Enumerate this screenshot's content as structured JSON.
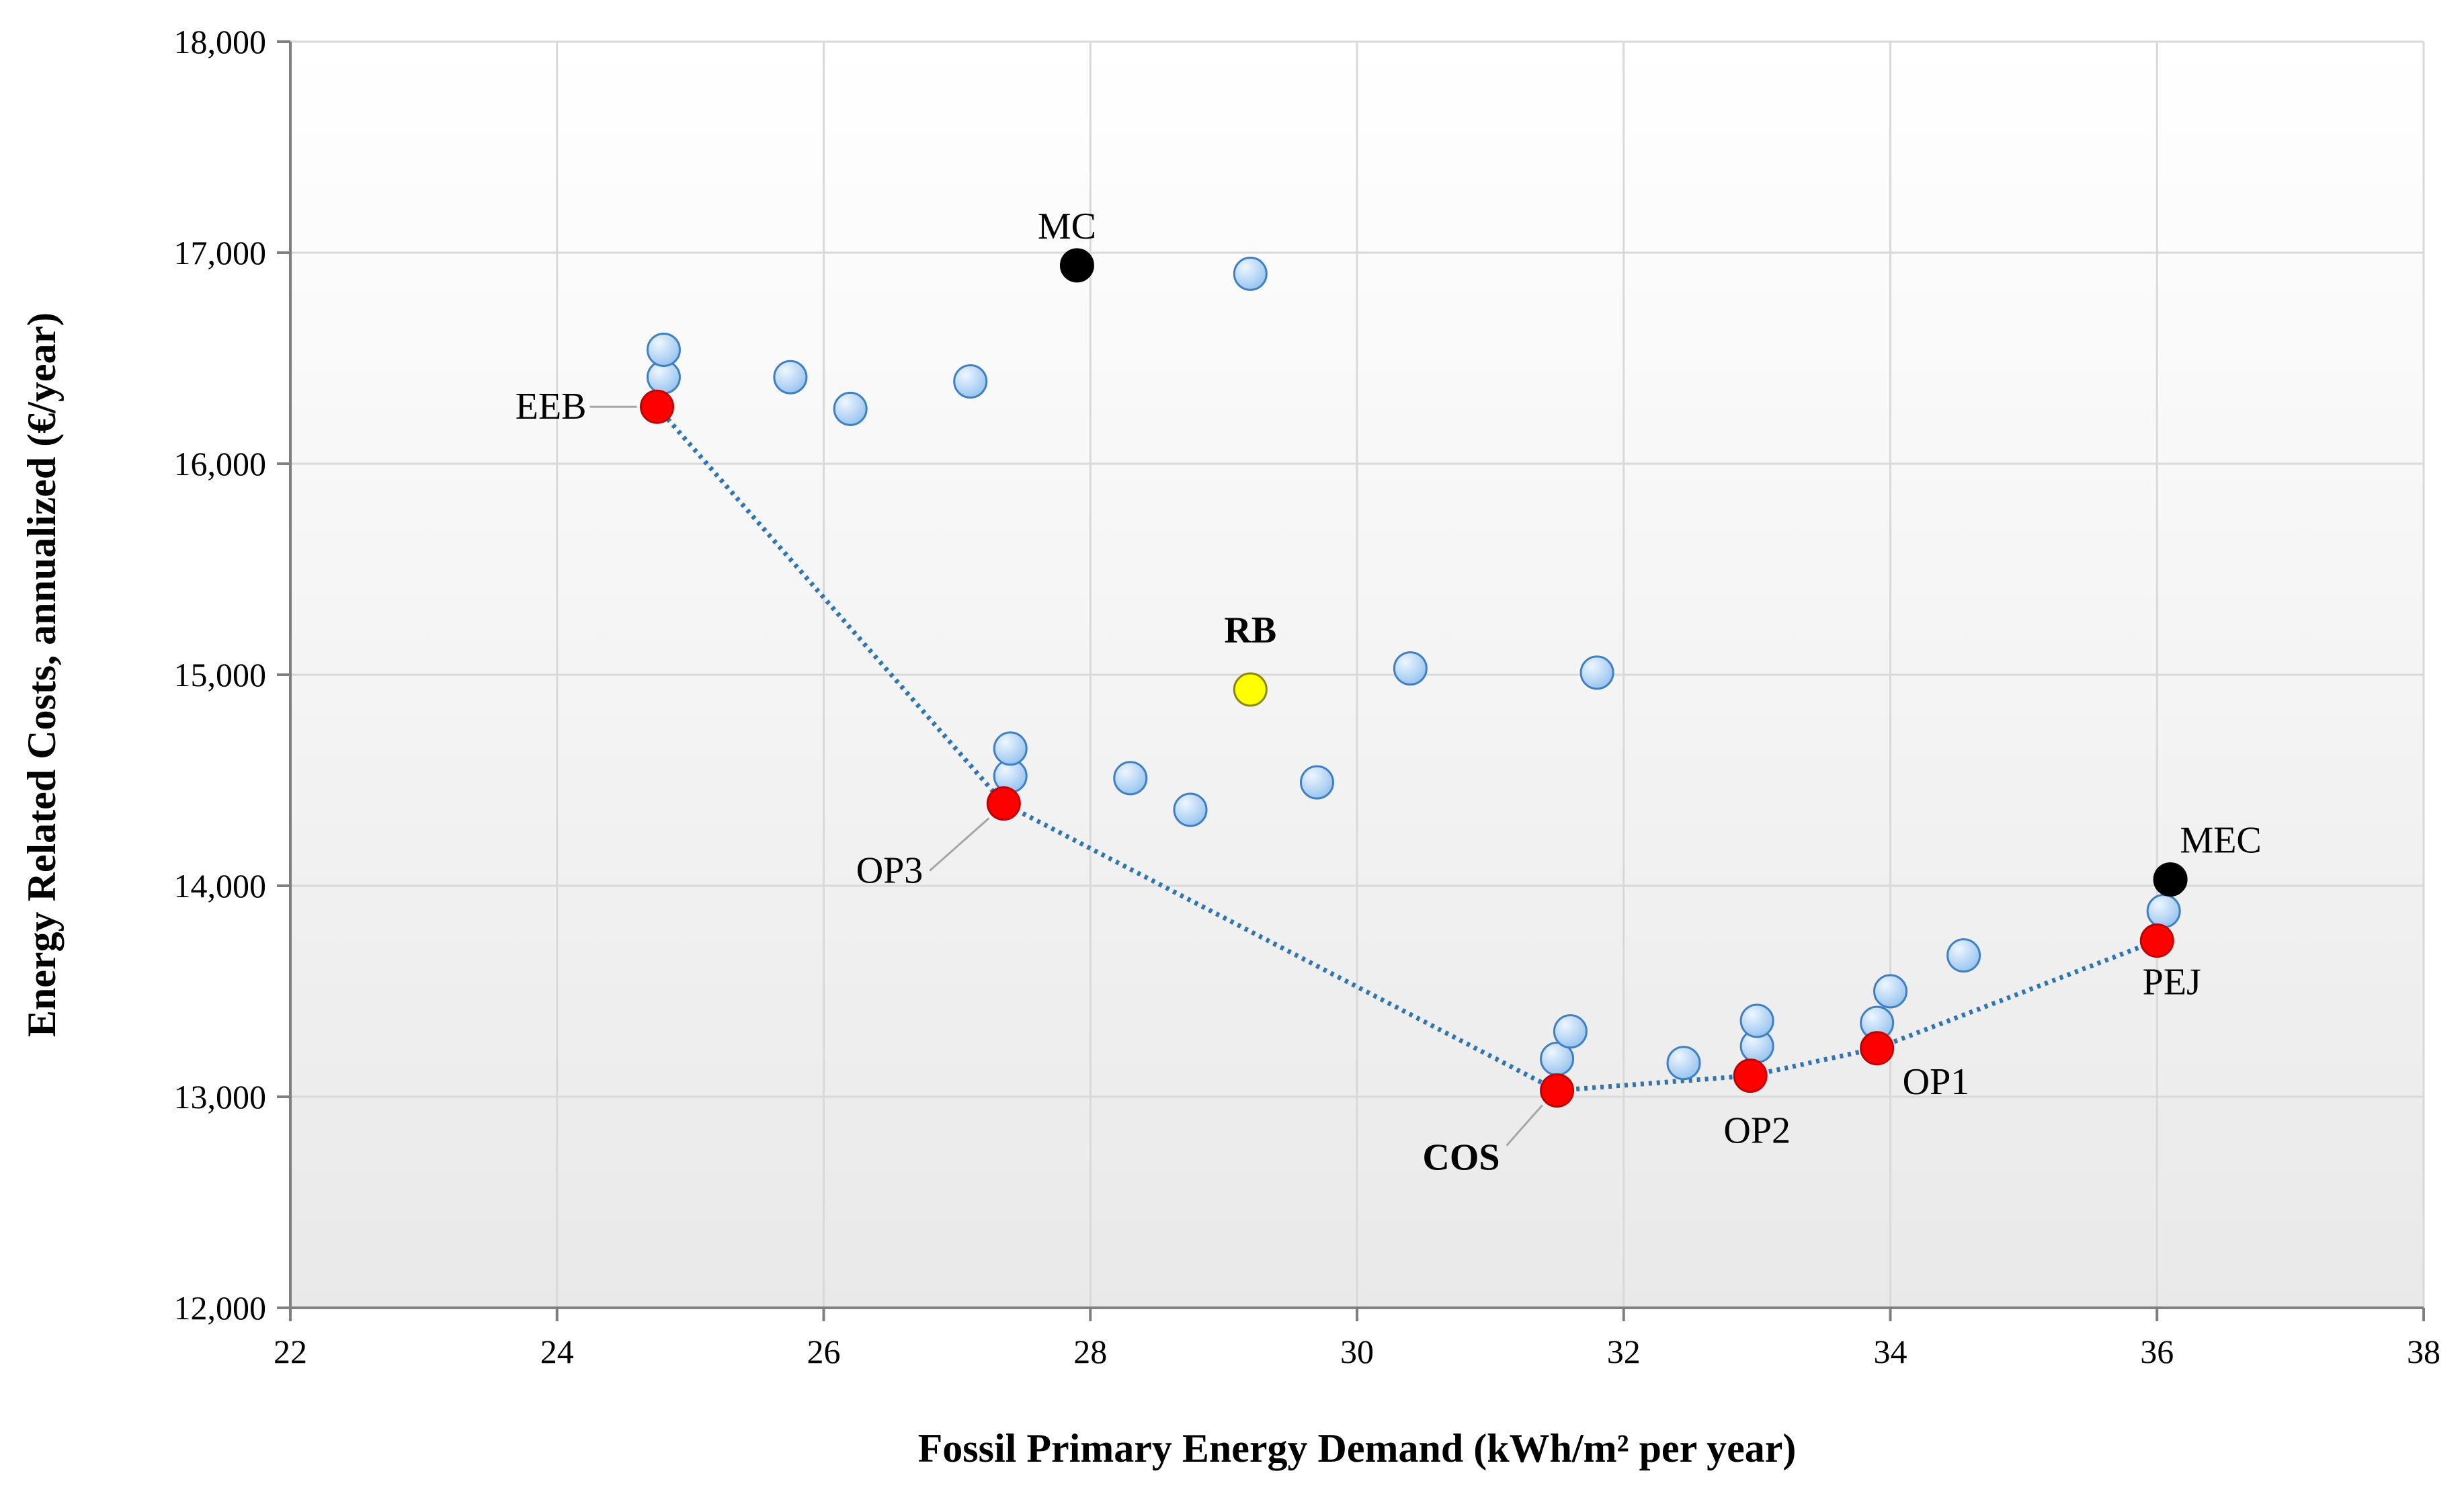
{
  "chart_data": {
    "type": "scatter",
    "xlabel": "Fossil Primary Energy Demand (kWh/m² per year)",
    "ylabel": "Energy Related Costs, annualized (€/year)",
    "xlim": [
      22,
      38
    ],
    "ylim": [
      12000,
      18000
    ],
    "x_ticks": [
      22,
      24,
      26,
      28,
      30,
      32,
      34,
      36,
      38
    ],
    "x_tick_labels": [
      "22",
      "24",
      "26",
      "28",
      "30",
      "32",
      "34",
      "36",
      "38"
    ],
    "y_ticks": [
      12000,
      13000,
      14000,
      15000,
      16000,
      17000,
      18000
    ],
    "y_tick_labels": [
      "12,000",
      "13,000",
      "14,000",
      "15,000",
      "16,000",
      "17,000",
      "18,000"
    ],
    "grid": true,
    "colors": {
      "candidate": "#a8cdf2",
      "optimal": "#ff0000",
      "reference": "#ffff00",
      "extreme": "#000000",
      "front_line": "#2e75b6",
      "cos_label": "#ff0000"
    },
    "series": [
      {
        "role": "candidate",
        "points": [
          {
            "x": 24.8,
            "y": 16410
          },
          {
            "x": 24.8,
            "y": 16540
          },
          {
            "x": 25.75,
            "y": 16410
          },
          {
            "x": 26.2,
            "y": 16260
          },
          {
            "x": 27.1,
            "y": 16390
          },
          {
            "x": 29.2,
            "y": 16900
          },
          {
            "x": 27.4,
            "y": 14520
          },
          {
            "x": 27.4,
            "y": 14650
          },
          {
            "x": 28.3,
            "y": 14510
          },
          {
            "x": 28.75,
            "y": 14360
          },
          {
            "x": 29.7,
            "y": 14490
          },
          {
            "x": 30.4,
            "y": 15030
          },
          {
            "x": 31.8,
            "y": 15010
          },
          {
            "x": 31.5,
            "y": 13180
          },
          {
            "x": 31.6,
            "y": 13310
          },
          {
            "x": 32.45,
            "y": 13160
          },
          {
            "x": 33.0,
            "y": 13240
          },
          {
            "x": 33.0,
            "y": 13360
          },
          {
            "x": 33.9,
            "y": 13350
          },
          {
            "x": 34.0,
            "y": 13500
          },
          {
            "x": 34.55,
            "y": 13670
          },
          {
            "x": 36.05,
            "y": 13880
          }
        ]
      },
      {
        "role": "optimal",
        "points": [
          {
            "x": 24.75,
            "y": 16270,
            "label": "EEB"
          },
          {
            "x": 27.35,
            "y": 14390,
            "label": "OP3"
          },
          {
            "x": 31.5,
            "y": 13030,
            "label": "COS"
          },
          {
            "x": 32.95,
            "y": 13100,
            "label": "OP2"
          },
          {
            "x": 33.9,
            "y": 13230,
            "label": "OP1"
          },
          {
            "x": 36.0,
            "y": 13740,
            "label": "PEJ"
          }
        ]
      },
      {
        "role": "reference",
        "points": [
          {
            "x": 29.2,
            "y": 14930,
            "label": "RB"
          }
        ]
      },
      {
        "role": "extreme",
        "points": [
          {
            "x": 27.9,
            "y": 16940,
            "label": "MC"
          },
          {
            "x": 36.1,
            "y": 14030,
            "label": "MEC"
          }
        ]
      }
    ],
    "front_line": [
      {
        "x": 24.75,
        "y": 16270
      },
      {
        "x": 27.35,
        "y": 14390
      },
      {
        "x": 31.5,
        "y": 13030
      },
      {
        "x": 32.95,
        "y": 13100
      },
      {
        "x": 33.9,
        "y": 13230
      },
      {
        "x": 36.0,
        "y": 13740
      }
    ]
  }
}
